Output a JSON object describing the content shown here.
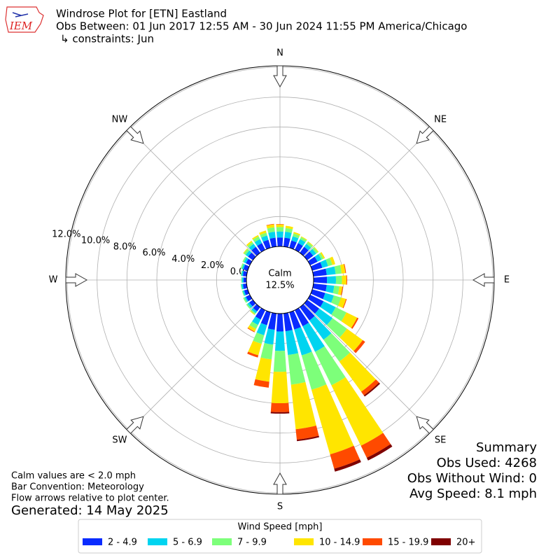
{
  "logo": "IEM",
  "chart_data": {
    "type": "windrose",
    "title": "Windrose Plot for [ETN] Eastland",
    "subtitle": "Obs Between: 01 Jun 2017 12:55 AM - 30 Jun 2024 11:55 PM America/Chicago",
    "constraints": "↳ constraints: Jun",
    "calm": {
      "label": "Calm",
      "value": 12.5,
      "value_label": "12.5%"
    },
    "x": [
      0,
      10,
      20,
      30,
      40,
      50,
      60,
      70,
      80,
      90,
      100,
      110,
      120,
      130,
      140,
      150,
      160,
      170,
      180,
      190,
      200,
      210,
      220,
      230,
      240,
      250,
      260,
      270,
      280,
      290,
      300,
      310,
      320,
      330,
      340,
      350
    ],
    "xlim": [
      0,
      360
    ],
    "xticks": [
      {
        "value": 0,
        "label": "N"
      },
      {
        "value": 45,
        "label": "NE"
      },
      {
        "value": 90,
        "label": "E"
      },
      {
        "value": 135,
        "label": "SE"
      },
      {
        "value": 180,
        "label": "S"
      },
      {
        "value": 225,
        "label": "SW"
      },
      {
        "value": 270,
        "label": "W"
      },
      {
        "value": 315,
        "label": "NW"
      }
    ],
    "ylim": [
      0,
      12
    ],
    "yticks": [
      {
        "value": 0,
        "label": "0.0%"
      },
      {
        "value": 2,
        "label": "2.0%"
      },
      {
        "value": 4,
        "label": "4.0%"
      },
      {
        "value": 6,
        "label": "6.0%"
      },
      {
        "value": 8,
        "label": "8.0%"
      },
      {
        "value": 10,
        "label": "10.0%"
      },
      {
        "value": 12,
        "label": "12.0%"
      }
    ],
    "grid": true,
    "legend_title": "Wind Speed [mph]",
    "legend": "bottom",
    "series": [
      {
        "name": "2 - 4.9",
        "color": "#0a2bff",
        "values": [
          0.6,
          0.6,
          0.5,
          0.5,
          0.5,
          0.5,
          0.55,
          0.7,
          0.9,
          0.9,
          0.9,
          0.9,
          1.0,
          1.0,
          1.1,
          1.2,
          1.2,
          1.2,
          1.2,
          1.1,
          0.9,
          0.7,
          0.35,
          0.3,
          0.3,
          0.25,
          0.25,
          0.2,
          0.25,
          0.3,
          0.3,
          0.4,
          0.5,
          0.5,
          0.55,
          0.6
        ]
      },
      {
        "name": "5 - 6.9",
        "color": "#00d4f0",
        "values": [
          0.4,
          0.4,
          0.3,
          0.3,
          0.25,
          0.25,
          0.3,
          0.4,
          0.6,
          0.6,
          0.5,
          0.6,
          0.9,
          1.1,
          1.6,
          1.9,
          1.8,
          1.6,
          1.3,
          1.0,
          0.7,
          0.4,
          0.15,
          0.15,
          0.1,
          0.1,
          0.1,
          0.1,
          0.1,
          0.1,
          0.15,
          0.2,
          0.25,
          0.3,
          0.3,
          0.4
        ]
      },
      {
        "name": "7 - 9.9",
        "color": "#7dff7a",
        "values": [
          0.3,
          0.25,
          0.2,
          0.15,
          0.15,
          0.15,
          0.15,
          0.3,
          0.4,
          0.4,
          0.35,
          0.5,
          0.8,
          1.2,
          1.8,
          2.5,
          2.4,
          2.0,
          1.4,
          1.0,
          0.6,
          0.3,
          0.1,
          0.1,
          0.1,
          0.05,
          0.05,
          0.05,
          0.05,
          0.1,
          0.1,
          0.15,
          0.15,
          0.2,
          0.2,
          0.3
        ]
      },
      {
        "name": "10 - 14.9",
        "color": "#ffe500",
        "values": [
          0.17,
          0.15,
          0.1,
          0.05,
          0.05,
          0.05,
          0.1,
          0.2,
          0.25,
          0.3,
          0.2,
          0.35,
          0.8,
          1.3,
          2.5,
          4.5,
          4.5,
          3.0,
          2.1,
          1.5,
          0.8,
          0.2,
          0.05,
          0,
          0,
          0,
          0,
          0,
          0,
          0,
          0,
          0.05,
          0.1,
          0.1,
          0.15,
          0.2
        ]
      },
      {
        "name": "15 - 19.9",
        "color": "#ff4a00",
        "values": [
          0.03,
          0,
          0,
          0,
          0,
          0,
          0,
          0,
          0.05,
          0.05,
          0.05,
          0.05,
          0.1,
          0.2,
          0.3,
          0.9,
          1.0,
          0.7,
          0.6,
          0.4,
          0.15,
          0.05,
          0,
          0,
          0,
          0,
          0,
          0,
          0,
          0,
          0,
          0,
          0,
          0,
          0,
          0.03
        ]
      },
      {
        "name": "20+",
        "color": "#7f0000",
        "values": [
          0,
          0,
          0,
          0,
          0,
          0,
          0,
          0,
          0,
          0,
          0,
          0,
          0,
          0,
          0.1,
          0.2,
          0.2,
          0.1,
          0.1,
          0,
          0,
          0,
          0,
          0,
          0,
          0,
          0,
          0,
          0,
          0,
          0,
          0,
          0,
          0,
          0,
          0
        ]
      }
    ],
    "notes": [
      "Calm values are < 2.0 mph",
      "Bar Convention: Meteorology",
      "Flow arrows relative to plot center."
    ],
    "generated": "Generated: 14 May 2025",
    "summary": [
      "Summary",
      "Obs Used: 4268",
      "Obs Without Wind: 0",
      "Avg Speed: 8.1 mph"
    ]
  }
}
